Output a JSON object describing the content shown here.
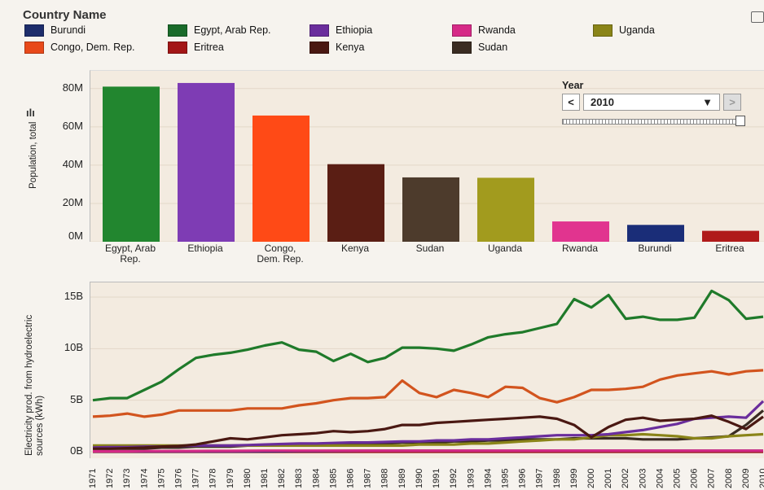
{
  "legend": {
    "title": "Country Name",
    "items": [
      {
        "name": "Burundi",
        "color": "#1d2d6b"
      },
      {
        "name": "Egypt, Arab Rep.",
        "color": "#1a6b2a"
      },
      {
        "name": "Ethiopia",
        "color": "#6a2d9c"
      },
      {
        "name": "Rwanda",
        "color": "#d62a87"
      },
      {
        "name": "Uganda",
        "color": "#8a8418"
      },
      {
        "name": "Congo, Dem. Rep.",
        "color": "#e8491a"
      },
      {
        "name": "Eritrea",
        "color": "#a31616"
      },
      {
        "name": "Kenya",
        "color": "#4a1812"
      },
      {
        "name": "Sudan",
        "color": "#3a2c22"
      }
    ]
  },
  "year_control": {
    "label": "Year",
    "value": "2010",
    "prev": "<",
    "next": ">"
  },
  "chart_data": [
    {
      "type": "bar",
      "ylabel": "Population, total",
      "ylim": [
        0,
        85000000
      ],
      "yticks": [
        {
          "v": 0,
          "label": "0M"
        },
        {
          "v": 20000000,
          "label": "20M"
        },
        {
          "v": 40000000,
          "label": "40M"
        },
        {
          "v": 60000000,
          "label": "60M"
        },
        {
          "v": 80000000,
          "label": "80M"
        }
      ],
      "categories": [
        {
          "label": [
            "Egypt, Arab",
            "Rep."
          ],
          "value": 81000000,
          "color": "#22862f"
        },
        {
          "label": [
            "Ethiopia"
          ],
          "value": 82900000,
          "color": "#7e3cb4"
        },
        {
          "label": [
            "Congo,",
            "Dem. Rep."
          ],
          "value": 65900000,
          "color": "#ff4a16"
        },
        {
          "label": [
            "Kenya"
          ],
          "value": 40500000,
          "color": "#5a1e14"
        },
        {
          "label": [
            "Sudan"
          ],
          "value": 33600000,
          "color": "#4d3b2c"
        },
        {
          "label": [
            "Uganda"
          ],
          "value": 33400000,
          "color": "#a29b1e"
        },
        {
          "label": [
            "Rwanda"
          ],
          "value": 10600000,
          "color": "#e1348f"
        },
        {
          "label": [
            "Burundi"
          ],
          "value": 8800000,
          "color": "#1a2d78"
        },
        {
          "label": [
            "Eritrea"
          ],
          "value": 5700000,
          "color": "#b01a1a"
        }
      ]
    },
    {
      "type": "line",
      "ylabel": "Electricity prod. from hydroelectric sources (kWh)",
      "ylim": [
        0,
        16000000000
      ],
      "yticks": [
        {
          "v": 0,
          "label": "0B"
        },
        {
          "v": 5000000000,
          "label": "5B"
        },
        {
          "v": 10000000000,
          "label": "10B"
        },
        {
          "v": 15000000000,
          "label": "15B"
        }
      ],
      "x": [
        "1971",
        "1972",
        "1973",
        "1974",
        "1975",
        "1976",
        "1977",
        "1978",
        "1979",
        "1980",
        "1981",
        "1982",
        "1983",
        "1984",
        "1985",
        "1986",
        "1987",
        "1988",
        "1989",
        "1990",
        "1991",
        "1992",
        "1993",
        "1994",
        "1995",
        "1996",
        "1997",
        "1998",
        "1999",
        "2000",
        "2001",
        "2002",
        "2003",
        "2004",
        "2005",
        "2006",
        "2007",
        "2008",
        "2009",
        "2010"
      ],
      "series": [
        {
          "name": "Egypt, Arab Rep.",
          "color": "#1f7a2a",
          "values": [
            5.0,
            5.2,
            5.2,
            6.0,
            6.8,
            8.0,
            9.1,
            9.4,
            9.6,
            9.9,
            10.3,
            10.6,
            9.9,
            9.7,
            8.8,
            9.5,
            8.7,
            9.1,
            10.1,
            10.1,
            10.0,
            9.8,
            10.4,
            11.1,
            11.4,
            11.6,
            12.0,
            12.4,
            14.8,
            14.0,
            15.2,
            12.9,
            13.1,
            12.8,
            12.8,
            13.0,
            15.6,
            14.7,
            12.9,
            13.1
          ]
        },
        {
          "name": "Congo, Dem. Rep.",
          "color": "#d2541e",
          "values": [
            3.4,
            3.5,
            3.7,
            3.4,
            3.6,
            4.0,
            4.0,
            4.0,
            4.0,
            4.2,
            4.2,
            4.2,
            4.5,
            4.7,
            5.0,
            5.2,
            5.2,
            5.3,
            6.9,
            5.7,
            5.3,
            6.0,
            5.7,
            5.3,
            6.3,
            6.2,
            5.2,
            4.8,
            5.3,
            6.0,
            6.0,
            6.1,
            6.3,
            7.0,
            7.4,
            7.6,
            7.8,
            7.5,
            7.8,
            7.9
          ]
        },
        {
          "name": "Kenya",
          "color": "#4a1812",
          "values": [
            0.3,
            0.3,
            0.35,
            0.4,
            0.5,
            0.55,
            0.7,
            1.0,
            1.3,
            1.2,
            1.4,
            1.6,
            1.7,
            1.8,
            2.0,
            1.9,
            2.0,
            2.2,
            2.6,
            2.6,
            2.8,
            2.9,
            3.0,
            3.1,
            3.2,
            3.3,
            3.4,
            3.2,
            2.6,
            1.4,
            2.4,
            3.1,
            3.3,
            3.0,
            3.1,
            3.2,
            3.5,
            2.9,
            2.2,
            3.4
          ]
        },
        {
          "name": "Ethiopia",
          "color": "#6a2d9c",
          "values": [
            0.4,
            0.45,
            0.45,
            0.5,
            0.5,
            0.55,
            0.6,
            0.6,
            0.6,
            0.65,
            0.7,
            0.75,
            0.8,
            0.8,
            0.85,
            0.9,
            0.9,
            0.95,
            1.0,
            1.0,
            1.1,
            1.1,
            1.2,
            1.2,
            1.3,
            1.4,
            1.5,
            1.6,
            1.6,
            1.6,
            1.7,
            1.9,
            2.1,
            2.4,
            2.7,
            3.2,
            3.3,
            3.4,
            3.3,
            4.9
          ]
        },
        {
          "name": "Uganda",
          "color": "#8a8418",
          "values": [
            0.6,
            0.6,
            0.6,
            0.6,
            0.6,
            0.6,
            0.6,
            0.6,
            0.6,
            0.6,
            0.6,
            0.6,
            0.6,
            0.6,
            0.6,
            0.6,
            0.6,
            0.6,
            0.6,
            0.7,
            0.7,
            0.7,
            0.8,
            0.8,
            0.9,
            1.0,
            1.1,
            1.2,
            1.2,
            1.4,
            1.6,
            1.6,
            1.7,
            1.6,
            1.5,
            1.3,
            1.3,
            1.5,
            1.6,
            1.7
          ]
        },
        {
          "name": "Sudan",
          "color": "#3a2c22",
          "values": [
            0.3,
            0.3,
            0.3,
            0.3,
            0.4,
            0.4,
            0.5,
            0.5,
            0.5,
            0.6,
            0.6,
            0.6,
            0.7,
            0.7,
            0.7,
            0.7,
            0.8,
            0.8,
            0.9,
            0.9,
            0.9,
            1.0,
            1.0,
            1.1,
            1.1,
            1.2,
            1.2,
            1.2,
            1.3,
            1.3,
            1.3,
            1.3,
            1.2,
            1.2,
            1.2,
            1.3,
            1.4,
            1.5,
            2.6,
            4.0
          ]
        },
        {
          "name": "Rwanda",
          "color": "#d62a87",
          "values": [
            0.05,
            0.05,
            0.05,
            0.06,
            0.06,
            0.07,
            0.07,
            0.08,
            0.08,
            0.09,
            0.1,
            0.1,
            0.1,
            0.1,
            0.1,
            0.1,
            0.1,
            0.1,
            0.1,
            0.1,
            0.1,
            0.1,
            0.1,
            0.1,
            0.1,
            0.1,
            0.1,
            0.1,
            0.1,
            0.1,
            0.1,
            0.1,
            0.1,
            0.1,
            0.1,
            0.1,
            0.1,
            0.1,
            0.1,
            0.1
          ]
        },
        {
          "name": "Burundi",
          "color": "#1d2d6b",
          "values": [
            0.02,
            0.02,
            0.02,
            0.02,
            0.02,
            0.02,
            0.02,
            0.03,
            0.03,
            0.03,
            0.04,
            0.05,
            0.06,
            0.07,
            0.08,
            0.09,
            0.1,
            0.1,
            0.1,
            0.1,
            0.1,
            0.1,
            0.1,
            0.1,
            0.1,
            0.1,
            0.1,
            0.1,
            0.1,
            0.1,
            0.1,
            0.1,
            0.1,
            0.1,
            0.1,
            0.1,
            0.1,
            0.1,
            0.1,
            0.1
          ]
        },
        {
          "name": "Eritrea",
          "color": "#a31616",
          "values": [
            0,
            0,
            0,
            0,
            0,
            0,
            0,
            0,
            0,
            0,
            0,
            0,
            0,
            0,
            0,
            0,
            0,
            0,
            0,
            0,
            0,
            0,
            0,
            0,
            0,
            0,
            0,
            0,
            0,
            0,
            0,
            0,
            0,
            0,
            0,
            0,
            0,
            0,
            0,
            0
          ]
        }
      ],
      "value_unit": "B"
    }
  ]
}
